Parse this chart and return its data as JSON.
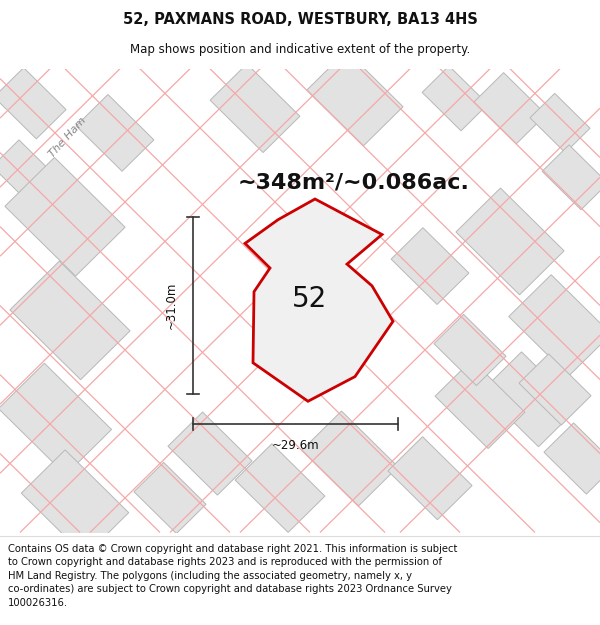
{
  "title": "52, PAXMANS ROAD, WESTBURY, BA13 4HS",
  "subtitle": "Map shows position and indicative extent of the property.",
  "area_text": "~348m²/~0.086ac.",
  "dim_height": "~31.0m",
  "dim_width": "~29.6m",
  "plot_number": "52",
  "copyright_text": "Contains OS data © Crown copyright and database right 2021. This information is subject\nto Crown copyright and database rights 2023 and is reproduced with the permission of\nHM Land Registry. The polygons (including the associated geometry, namely x, y\nco-ordinates) are subject to Crown copyright and database rights 2023 Ordnance Survey\n100026316.",
  "bg_color": "#ffffff",
  "map_bg": "#f8f8f8",
  "building_fill": "#e2e2e2",
  "building_edge": "#b8b8b8",
  "pink_line_color": "#f5a8a8",
  "plot_color": "#cc0000",
  "plot_fill": "#f0f0f0",
  "title_fontsize": 10.5,
  "subtitle_fontsize": 8.5,
  "area_fontsize": 16,
  "dim_fontsize": 8.5,
  "plot_num_fontsize": 20,
  "copyright_fontsize": 7.2,
  "the_ham_fontsize": 8
}
